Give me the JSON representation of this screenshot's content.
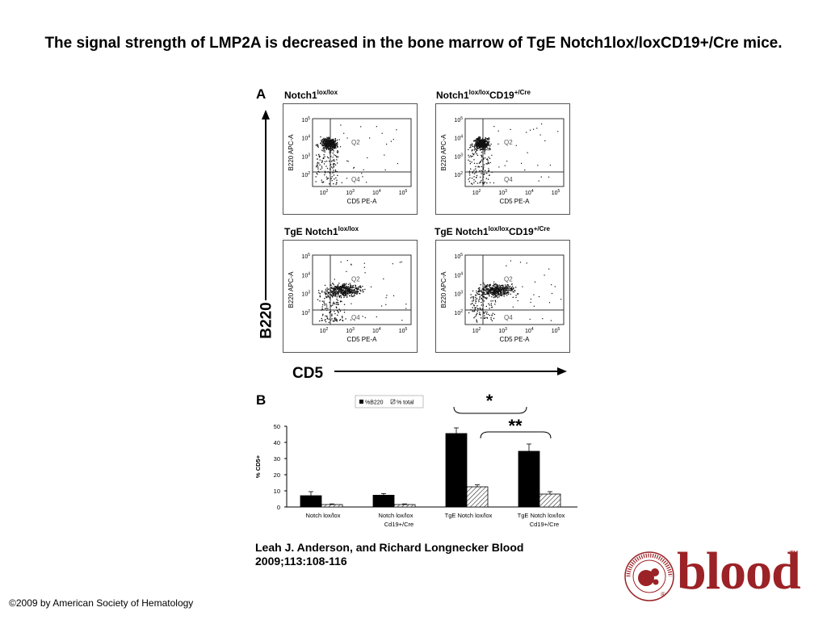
{
  "title": "The signal strength of LMP2A is decreased in the bone marrow of TgE Notch1lox/loxCD19+/Cre mice.",
  "panel_a": {
    "letter": "A",
    "y_axis_label": "B220",
    "x_axis_label": "CD5",
    "plots": [
      {
        "name_main": "Notch1",
        "name_sup": "lox/lox",
        "name_after": "",
        "name_after_sup": ""
      },
      {
        "name_main": "Notch1",
        "name_sup": "lox/lox",
        "name_after": "CD19",
        "name_after_sup": "+/Cre"
      },
      {
        "name_main": "TgE Notch1",
        "name_sup": "lox/lox",
        "name_after": "",
        "name_after_sup": ""
      },
      {
        "name_main": "TgE Notch1",
        "name_sup": "lox/lox",
        "name_after": "CD19",
        "name_after_sup": "+/Cre"
      }
    ],
    "plot_ylabel": "B220 APC-A",
    "plot_xlabel": "CD5 PE-A",
    "quadrant_labels": [
      "Q2",
      "Q4"
    ],
    "tick_labels": [
      "10",
      "10",
      "10",
      "10"
    ],
    "tick_exponents": [
      "2",
      "3",
      "4",
      "5"
    ]
  },
  "panel_b": {
    "letter": "B",
    "significance_1": "*",
    "significance_2": "**"
  },
  "chart_data": {
    "type": "bar",
    "categories": [
      "Notch lox/lox",
      "Notch lox/lox Cd19+/Cre",
      "TgE Notch lox/lox",
      "TgE Notch lox/lox Cd19+/Cre"
    ],
    "category_lines": [
      [
        "Notch lox/lox",
        ""
      ],
      [
        "Notch lox/lox",
        "Cd19+/Cre"
      ],
      [
        "TgE Notch lox/lox",
        ""
      ],
      [
        "TgE Notch lox/lox",
        "Cd19+/Cre"
      ]
    ],
    "series": [
      {
        "name": "%B220",
        "values": [
          7,
          7.3,
          45.5,
          34.5
        ],
        "errors": [
          2.5,
          1,
          3.5,
          4.5
        ],
        "color": "#000000",
        "pattern": "solid"
      },
      {
        "name": "% total",
        "values": [
          1.5,
          1.5,
          12.5,
          8
        ],
        "errors": [
          0.4,
          0.4,
          1.2,
          1.5
        ],
        "color": "#ffffff",
        "pattern": "hatched"
      }
    ],
    "ylabel": "% CD5+",
    "yticks": [
      0,
      10,
      20,
      30,
      40,
      50
    ],
    "ylim": [
      0,
      50
    ],
    "legend_position": "top"
  },
  "citation": {
    "line1": "Leah J. Anderson, and Richard Longnecker Blood",
    "line2": "2009;113:108-116"
  },
  "footer": "©2009 by American Society of Hematology",
  "logo": {
    "word": "blood",
    "ring_text": "AMERICAN SOCIETY OF HEMATOLOGY",
    "trademark": "TM",
    "registered": "®",
    "brand_color": "#9b2226"
  }
}
